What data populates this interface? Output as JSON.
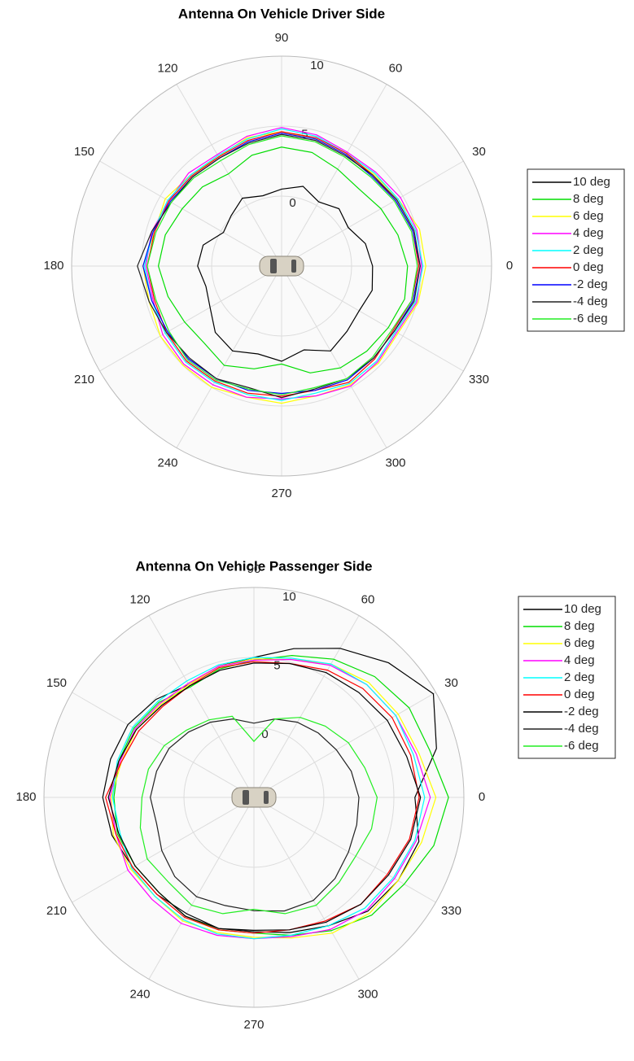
{
  "chart_data": [
    {
      "type": "polar",
      "title": "Antenna On Vehicle Driver Side",
      "theta": [
        0,
        15,
        30,
        45,
        60,
        75,
        90,
        105,
        120,
        135,
        150,
        165,
        180,
        195,
        210,
        225,
        240,
        255,
        270,
        285,
        300,
        315,
        330,
        345
      ],
      "rlim": [
        -5,
        10
      ],
      "rticks": [
        0,
        5,
        10
      ],
      "thetaticks": [
        0,
        30,
        60,
        90,
        120,
        150,
        180,
        210,
        240,
        270,
        300,
        330
      ],
      "grid": true,
      "legend": "right",
      "series": [
        {
          "name": "10 deg",
          "color": "#000000",
          "values": [
            1.5,
            1.2,
            0.5,
            0.8,
            0.3,
            0.9,
            0.5,
            0.2,
            0.6,
            0.1,
            -0.2,
            0.8,
            1.0,
            0.6,
            0.9,
            1.7,
            2.0,
            1.5,
            1.8,
            1.2,
            2.0,
            1.6,
            1.4,
            1.7
          ]
        },
        {
          "name": "8 deg",
          "color": "#00dd00",
          "values": [
            4.0,
            3.6,
            3.2,
            2.8,
            3.0,
            3.4,
            3.5,
            3.2,
            2.6,
            3.0,
            3.2,
            3.6,
            3.8,
            3.4,
            3.0,
            2.8,
            3.2,
            2.6,
            2.0,
            2.9,
            3.4,
            3.6,
            3.8,
            4.1
          ]
        },
        {
          "name": "6 deg",
          "color": "#ffff00",
          "values": [
            5.3,
            5.2,
            4.6,
            4.3,
            4.2,
            4.4,
            4.6,
            4.5,
            4.0,
            4.2,
            4.6,
            4.4,
            4.9,
            4.8,
            5.0,
            5.0,
            5.0,
            4.7,
            4.8,
            4.6,
            4.8,
            4.8,
            4.6,
            5.1
          ]
        },
        {
          "name": "4 deg",
          "color": "#ff00ff",
          "values": [
            5.0,
            5.0,
            4.8,
            4.5,
            4.4,
            4.7,
            4.9,
            4.6,
            4.2,
            4.4,
            4.3,
            4.6,
            4.7,
            4.5,
            4.8,
            4.9,
            4.8,
            4.7,
            4.5,
            4.6,
            4.9,
            4.7,
            4.5,
            5.0
          ]
        },
        {
          "name": "2 deg",
          "color": "#00ffff",
          "values": [
            5.1,
            4.9,
            4.6,
            4.4,
            4.3,
            4.6,
            4.8,
            4.4,
            4.1,
            4.2,
            4.4,
            4.5,
            4.8,
            4.6,
            4.6,
            4.7,
            4.6,
            4.5,
            4.6,
            4.4,
            4.7,
            4.6,
            4.4,
            4.9
          ]
        },
        {
          "name": "0 deg",
          "color": "#ff0000",
          "values": [
            4.8,
            4.7,
            4.4,
            4.2,
            4.3,
            4.5,
            4.6,
            4.3,
            4.0,
            4.1,
            4.3,
            4.4,
            4.6,
            4.4,
            4.5,
            4.6,
            4.5,
            4.4,
            4.3,
            4.2,
            4.6,
            4.4,
            4.2,
            4.6
          ]
        },
        {
          "name": "-2 deg",
          "color": "#0000ff",
          "values": [
            4.9,
            4.7,
            4.4,
            4.1,
            4.2,
            4.4,
            4.5,
            4.2,
            3.9,
            4.0,
            4.2,
            4.5,
            4.9,
            4.6,
            4.4,
            4.4,
            4.3,
            4.2,
            4.1,
            4.2,
            4.4,
            4.3,
            4.3,
            4.7
          ]
        },
        {
          "name": "-4 deg",
          "color": "#222222",
          "values": [
            4.9,
            4.8,
            4.5,
            4.2,
            4.1,
            4.3,
            4.4,
            4.1,
            3.9,
            4.0,
            4.1,
            4.6,
            5.3,
            4.8,
            4.5,
            4.3,
            4.3,
            4.0,
            4.4,
            4.1,
            4.3,
            4.3,
            4.3,
            4.8
          ]
        },
        {
          "name": "-6 deg",
          "color": "#22ee22",
          "values": [
            4.7,
            4.6,
            4.3,
            4.0,
            4.0,
            4.2,
            4.3,
            4.0,
            3.7,
            3.9,
            4.1,
            4.3,
            4.6,
            4.3,
            4.3,
            4.5,
            4.4,
            4.1,
            4.2,
            4.0,
            4.3,
            4.2,
            4.1,
            4.6
          ]
        }
      ]
    },
    {
      "type": "polar",
      "title": "Antenna On Vehicle Passenger Side",
      "theta": [
        0,
        15,
        30,
        45,
        60,
        75,
        90,
        105,
        120,
        135,
        150,
        165,
        180,
        195,
        210,
        225,
        240,
        255,
        270,
        285,
        300,
        315,
        330,
        345
      ],
      "rlim": [
        -5,
        10
      ],
      "rticks": [
        0,
        5,
        10
      ],
      "thetaticks": [
        0,
        30,
        60,
        90,
        120,
        150,
        180,
        210,
        240,
        270,
        300,
        330
      ],
      "grid": true,
      "legend": "right",
      "series": [
        {
          "name": "10 deg",
          "color": "#000000",
          "values": [
            6.5,
            8.5,
            9.8,
            8.6,
            7.3,
            6.0,
            5.0,
            4.7,
            4.3,
            4.9,
            5.4,
            5.6,
            5.8,
            5.5,
            5.0,
            4.8,
            4.6,
            4.7,
            4.6,
            5.0,
            5.6,
            6.5,
            6.9,
            7.2
          ]
        },
        {
          "name": "8 deg",
          "color": "#00dd00",
          "values": [
            8.9,
            8.0,
            7.8,
            7.2,
            6.4,
            5.5,
            4.8,
            4.5,
            4.1,
            4.6,
            4.9,
            5.0,
            5.0,
            5.1,
            4.8,
            4.6,
            4.8,
            4.8,
            4.7,
            5.2,
            6.0,
            6.9,
            7.4,
            8.3
          ]
        },
        {
          "name": "6 deg",
          "color": "#ffff00",
          "values": [
            8.0,
            7.2,
            6.9,
            6.6,
            6.0,
            5.2,
            4.9,
            4.7,
            4.3,
            4.4,
            4.7,
            4.8,
            5.2,
            5.4,
            5.2,
            5.0,
            5.2,
            5.0,
            5.0,
            5.4,
            6.2,
            6.7,
            6.9,
            7.4
          ]
        },
        {
          "name": "4 deg",
          "color": "#ff00ff",
          "values": [
            7.6,
            7.0,
            6.7,
            6.4,
            5.9,
            5.2,
            4.8,
            4.7,
            4.4,
            4.5,
            4.8,
            4.9,
            5.3,
            5.2,
            5.4,
            5.3,
            5.4,
            5.2,
            5.1,
            5.3,
            5.9,
            6.4,
            6.6,
            7.0
          ]
        },
        {
          "name": "2 deg",
          "color": "#00ffff",
          "values": [
            7.2,
            6.8,
            6.7,
            6.4,
            6.0,
            5.3,
            5.0,
            4.8,
            4.6,
            4.7,
            5.0,
            5.1,
            5.1,
            4.9,
            5.1,
            5.0,
            5.1,
            5.1,
            5.1,
            5.2,
            5.6,
            6.2,
            6.5,
            6.9
          ]
        },
        {
          "name": "0 deg",
          "color": "#ff0000",
          "values": [
            6.8,
            6.6,
            6.4,
            6.0,
            5.5,
            4.9,
            4.7,
            4.6,
            4.2,
            4.2,
            4.5,
            4.8,
            5.6,
            5.2,
            5.0,
            4.8,
            4.9,
            4.8,
            4.7,
            4.8,
            5.2,
            5.8,
            6.0,
            6.5
          ]
        },
        {
          "name": "-2 deg",
          "color": "#000000",
          "values": [
            6.9,
            6.3,
            6.0,
            5.6,
            5.3,
            4.9,
            4.6,
            4.4,
            4.2,
            4.3,
            4.7,
            5.0,
            5.4,
            5.0,
            4.8,
            4.6,
            4.8,
            4.7,
            4.5,
            4.8,
            5.3,
            5.8,
            6.1,
            6.6
          ]
        },
        {
          "name": "-4 deg",
          "color": "#222222",
          "values": [
            2.5,
            2.2,
            1.8,
            1.5,
            1.2,
            0.8,
            0.3,
            0.8,
            1.2,
            1.6,
            2.0,
            2.2,
            2.4,
            2.2,
            2.6,
            3.0,
            3.2,
            3.0,
            3.1,
            3.4,
            3.5,
            3.2,
            2.8,
            2.6
          ]
        },
        {
          "name": "-6 deg",
          "color": "#22ee22",
          "values": [
            3.8,
            3.2,
            2.8,
            2.2,
            1.6,
            0.8,
            -1.0,
            1.0,
            1.4,
            1.8,
            2.4,
            2.8,
            3.0,
            3.4,
            3.8,
            3.6,
            3.9,
            3.6,
            3.0,
            3.6,
            3.9,
            3.6,
            3.4,
            3.7
          ]
        }
      ]
    }
  ]
}
